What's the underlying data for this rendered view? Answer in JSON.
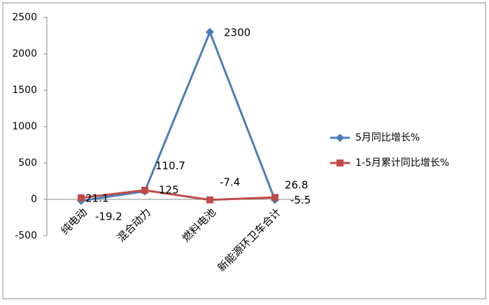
{
  "chart_data": {
    "type": "line",
    "categories": [
      "纯电动",
      "混合动力",
      "燃料电池",
      "新能源环卫车合计"
    ],
    "series": [
      {
        "name": "5月同比增长%",
        "color": "#4a7ebb",
        "marker": "diamond",
        "values": [
          -19.2,
          110.7,
          2300,
          -5.5
        ]
      },
      {
        "name": "1-5月累计同比增长%",
        "color": "#be4b48",
        "marker": "square",
        "values": [
          21.1,
          125,
          -7.4,
          26.8
        ]
      }
    ],
    "ylim": [
      -500,
      2500
    ],
    "yticks": [
      -500,
      0,
      500,
      1000,
      1500,
      2000,
      2500
    ],
    "grid": false,
    "legend": "right"
  }
}
